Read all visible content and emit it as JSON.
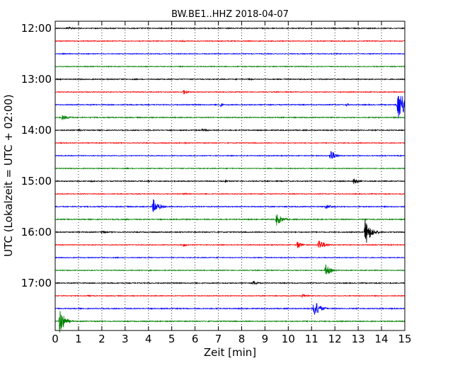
{
  "chart_data": {
    "type": "line",
    "title": "BW.BE1..HHZ 2018-04-07",
    "xlabel": "Zeit  [min]",
    "ylabel": "UTC (Lokalzeit = UTC + 02:00)",
    "xlim": [
      0,
      15
    ],
    "x_ticks": [
      "0",
      "1",
      "2",
      "3",
      "4",
      "5",
      "6",
      "7",
      "8",
      "9",
      "10",
      "11",
      "12",
      "13",
      "14",
      "15"
    ],
    "y_ticks": [
      {
        "label": "12:00",
        "trace": 0
      },
      {
        "label": "13:00",
        "trace": 4
      },
      {
        "label": "14:00",
        "trace": 8
      },
      {
        "label": "15:00",
        "trace": 12
      },
      {
        "label": "16:00",
        "trace": 16
      },
      {
        "label": "17:00",
        "trace": 20
      }
    ],
    "grid": {
      "vertical": true,
      "style": "dotted"
    },
    "trace_interval_minutes": 15,
    "colors": [
      "#000000",
      "#ff0000",
      "#0000ff",
      "#008000"
    ],
    "traces": [
      {
        "start": "12:00",
        "noise": 0.6,
        "events": [
          {
            "t": 0.5,
            "amp": 2.0,
            "dur": 0.8
          },
          {
            "t": 2.5,
            "amp": 1.2,
            "dur": 0.5
          }
        ]
      },
      {
        "start": "12:15",
        "noise": 0.5,
        "events": [
          {
            "t": 5.5,
            "amp": 1.2,
            "dur": 0.5
          }
        ]
      },
      {
        "start": "12:30",
        "noise": 0.5,
        "events": []
      },
      {
        "start": "12:45",
        "noise": 0.5,
        "events": []
      },
      {
        "start": "13:00",
        "noise": 0.6,
        "events": [
          {
            "t": 8.3,
            "amp": 1.5,
            "dur": 0.6
          }
        ]
      },
      {
        "start": "13:15",
        "noise": 0.5,
        "events": [
          {
            "t": 5.5,
            "amp": 4.0,
            "dur": 0.35
          }
        ]
      },
      {
        "start": "13:30",
        "noise": 0.6,
        "events": [
          {
            "t": 7.1,
            "amp": 4.0,
            "dur": 0.2
          },
          {
            "t": 12.5,
            "amp": 2.5,
            "dur": 0.2
          },
          {
            "t": 14.7,
            "amp": 22.0,
            "dur": 0.9
          }
        ]
      },
      {
        "start": "13:45",
        "noise": 0.6,
        "events": [
          {
            "t": 0.3,
            "amp": 4.0,
            "dur": 0.6
          }
        ]
      },
      {
        "start": "14:00",
        "noise": 0.6,
        "events": [
          {
            "t": 1.0,
            "amp": 2.0,
            "dur": 0.4
          },
          {
            "t": 6.3,
            "amp": 2.0,
            "dur": 1.0
          }
        ]
      },
      {
        "start": "14:15",
        "noise": 0.5,
        "events": [
          {
            "t": 5.5,
            "amp": 1.0,
            "dur": 0.5
          }
        ]
      },
      {
        "start": "14:30",
        "noise": 0.5,
        "events": [
          {
            "t": 11.8,
            "amp": 10.0,
            "dur": 0.4
          }
        ]
      },
      {
        "start": "14:45",
        "noise": 0.5,
        "events": [
          {
            "t": 3.1,
            "amp": 1.5,
            "dur": 0.2
          }
        ]
      },
      {
        "start": "15:00",
        "noise": 0.6,
        "events": [
          {
            "t": 1.5,
            "amp": 1.5,
            "dur": 0.5
          },
          {
            "t": 4.0,
            "amp": 2.0,
            "dur": 0.2
          },
          {
            "t": 7.3,
            "amp": 2.5,
            "dur": 0.2
          },
          {
            "t": 12.8,
            "amp": 5.0,
            "dur": 0.4
          }
        ]
      },
      {
        "start": "15:15",
        "noise": 0.5,
        "events": [
          {
            "t": 5.5,
            "amp": 1.5,
            "dur": 0.4
          }
        ]
      },
      {
        "start": "15:30",
        "noise": 0.6,
        "events": [
          {
            "t": 4.2,
            "amp": 11.0,
            "dur": 0.5
          },
          {
            "t": 11.6,
            "amp": 4.0,
            "dur": 0.6
          }
        ]
      },
      {
        "start": "15:45",
        "noise": 0.6,
        "events": [
          {
            "t": 3.0,
            "amp": 2.0,
            "dur": 0.3
          },
          {
            "t": 9.5,
            "amp": 10.0,
            "dur": 0.45
          },
          {
            "t": 10.0,
            "amp": 1.5,
            "dur": 0.2
          }
        ]
      },
      {
        "start": "16:00",
        "noise": 0.6,
        "events": [
          {
            "t": 2.0,
            "amp": 2.0,
            "dur": 0.5
          },
          {
            "t": 13.3,
            "amp": 20.0,
            "dur": 0.5
          }
        ]
      },
      {
        "start": "16:15",
        "noise": 0.5,
        "events": [
          {
            "t": 5.5,
            "amp": 2.5,
            "dur": 0.4
          },
          {
            "t": 10.4,
            "amp": 7.0,
            "dur": 0.3
          },
          {
            "t": 11.3,
            "amp": 9.0,
            "dur": 0.5
          }
        ]
      },
      {
        "start": "16:30",
        "noise": 0.5,
        "events": []
      },
      {
        "start": "16:45",
        "noise": 0.5,
        "events": [
          {
            "t": 4.0,
            "amp": 1.5,
            "dur": 0.3
          },
          {
            "t": 11.6,
            "amp": 9.0,
            "dur": 0.45
          }
        ]
      },
      {
        "start": "17:00",
        "noise": 0.6,
        "events": [
          {
            "t": 4.0,
            "amp": 1.2,
            "dur": 0.5
          },
          {
            "t": 8.5,
            "amp": 4.0,
            "dur": 0.4
          }
        ]
      },
      {
        "start": "17:15",
        "noise": 0.5,
        "events": [
          {
            "t": 1.4,
            "amp": 1.5,
            "dur": 0.3
          },
          {
            "t": 10.6,
            "amp": 3.0,
            "dur": 0.5
          }
        ]
      },
      {
        "start": "17:30",
        "noise": 0.6,
        "events": [
          {
            "t": 11.1,
            "amp": 14.0,
            "dur": 0.5
          }
        ]
      },
      {
        "start": "17:45",
        "noise": 0.6,
        "events": [
          {
            "t": 0.2,
            "amp": 20.0,
            "dur": 0.4
          }
        ]
      }
    ]
  }
}
